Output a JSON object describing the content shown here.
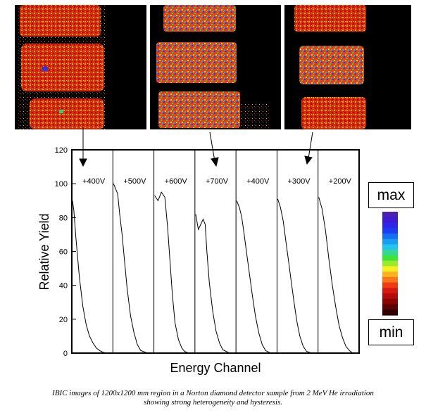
{
  "images": [
    {
      "label": "IBIC image 1"
    },
    {
      "label": "IBIC image 2"
    },
    {
      "label": "IBIC image 3"
    }
  ],
  "color_scale": {
    "max_label": "max",
    "min_label": "min",
    "colors": [
      "#4a1fb5",
      "#3f1ad0",
      "#2f27e6",
      "#1c3cf0",
      "#166ef2",
      "#1a9cf0",
      "#25c4ef",
      "#36d88f",
      "#3ee33c",
      "#9ae92a",
      "#f7ef22",
      "#f9b21d",
      "#f77619",
      "#f03a14",
      "#d41a10",
      "#b40c0a",
      "#8a0605",
      "#5a0503",
      "#2e0201"
    ]
  },
  "caption": {
    "line1": "IBIC images of 1200x1200 mm region in a Norton diamond detector sample from 2 MeV He irradiation",
    "line2": "showing strong heterogeneity and hysteresis."
  },
  "chart_data": {
    "type": "line",
    "xlabel": "Energy Channel",
    "ylabel": "Relative Yield",
    "ylim": [
      0,
      120
    ],
    "yticks": [
      0,
      20,
      40,
      60,
      80,
      100,
      120
    ],
    "grid": false,
    "series": [
      {
        "name": "+400V",
        "x": [
          0,
          0.04,
          0.1,
          0.2,
          0.3,
          0.4,
          0.5,
          0.6,
          0.7,
          0.8,
          0.9,
          1.0
        ],
        "y": [
          90,
          84,
          68,
          45,
          28,
          17,
          10,
          6,
          3,
          1.5,
          0.5,
          0
        ]
      },
      {
        "name": "+500V",
        "x": [
          0,
          0.06,
          0.12,
          0.18,
          0.25,
          0.32,
          0.4,
          0.5,
          0.6,
          0.7,
          0.8,
          1.0
        ],
        "y": [
          100,
          97,
          94,
          82,
          70,
          55,
          38,
          22,
          12,
          5,
          1.5,
          0
        ]
      },
      {
        "name": "+600V",
        "x": [
          0,
          0.1,
          0.2,
          0.3,
          0.38,
          0.45,
          0.52,
          0.6,
          0.7,
          0.8,
          0.88,
          1.0
        ],
        "y": [
          93,
          90,
          95,
          92,
          75,
          55,
          35,
          18,
          8,
          3,
          1,
          0
        ]
      },
      {
        "name": "+700V",
        "x": [
          0,
          0.08,
          0.15,
          0.22,
          0.28,
          0.33,
          0.4,
          0.5,
          0.6,
          0.7,
          0.8,
          1.0
        ],
        "y": [
          82,
          73,
          76,
          79,
          76,
          60,
          42,
          25,
          13,
          6,
          2,
          0
        ]
      },
      {
        "name": "+400V",
        "x": [
          0,
          0.08,
          0.15,
          0.22,
          0.3,
          0.38,
          0.46,
          0.55,
          0.65,
          0.75,
          0.85,
          1.0
        ],
        "y": [
          90,
          86,
          80,
          70,
          58,
          46,
          34,
          22,
          12,
          5,
          1.5,
          0
        ]
      },
      {
        "name": "+300V",
        "x": [
          0,
          0.08,
          0.16,
          0.24,
          0.32,
          0.4,
          0.48,
          0.56,
          0.65,
          0.75,
          0.85,
          1.0
        ],
        "y": [
          91,
          86,
          78,
          66,
          54,
          42,
          30,
          19,
          10,
          4,
          1,
          0
        ]
      },
      {
        "name": "+200V",
        "x": [
          0,
          0.1,
          0.2,
          0.3,
          0.4,
          0.5,
          0.6,
          0.7,
          0.8,
          0.9,
          1.0
        ],
        "y": [
          92,
          85,
          72,
          55,
          40,
          27,
          16,
          9,
          4,
          1.5,
          0
        ]
      }
    ]
  }
}
